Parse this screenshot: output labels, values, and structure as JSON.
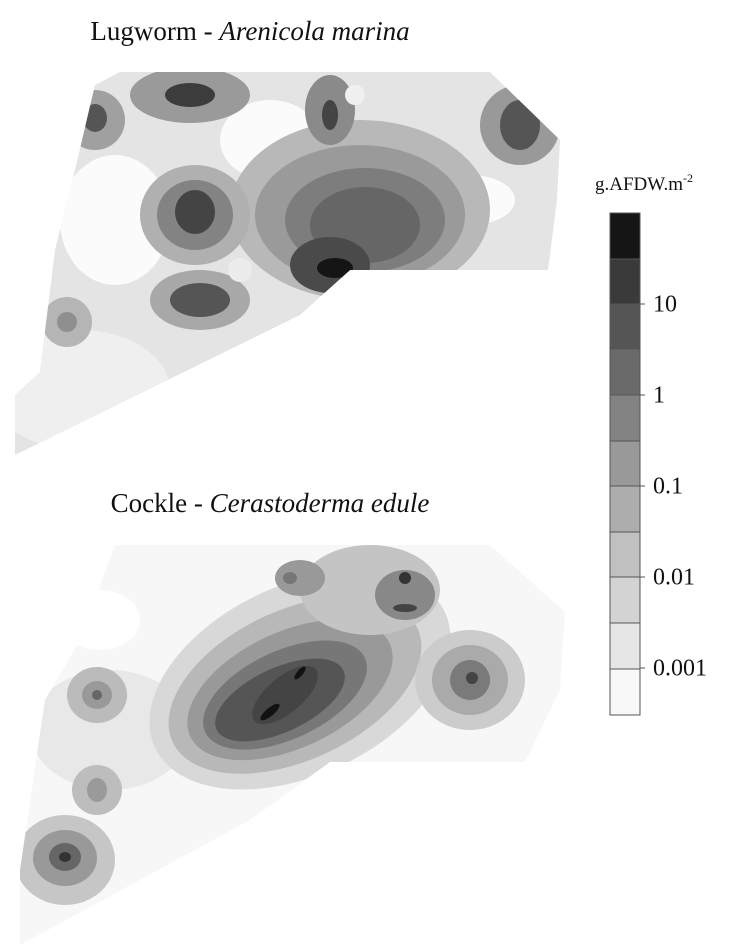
{
  "maps": [
    {
      "title": {
        "common": "Lugworm - ",
        "latin": "Arenicola marina"
      }
    },
    {
      "title": {
        "common": "Cockle - ",
        "latin": "Cerastoderma edule"
      }
    }
  ],
  "colorbar": {
    "label": "g.AFDW.m",
    "label_exponent": "-2",
    "log": true,
    "ticks": [
      10,
      1,
      0.1,
      0.01,
      0.001
    ]
  }
}
